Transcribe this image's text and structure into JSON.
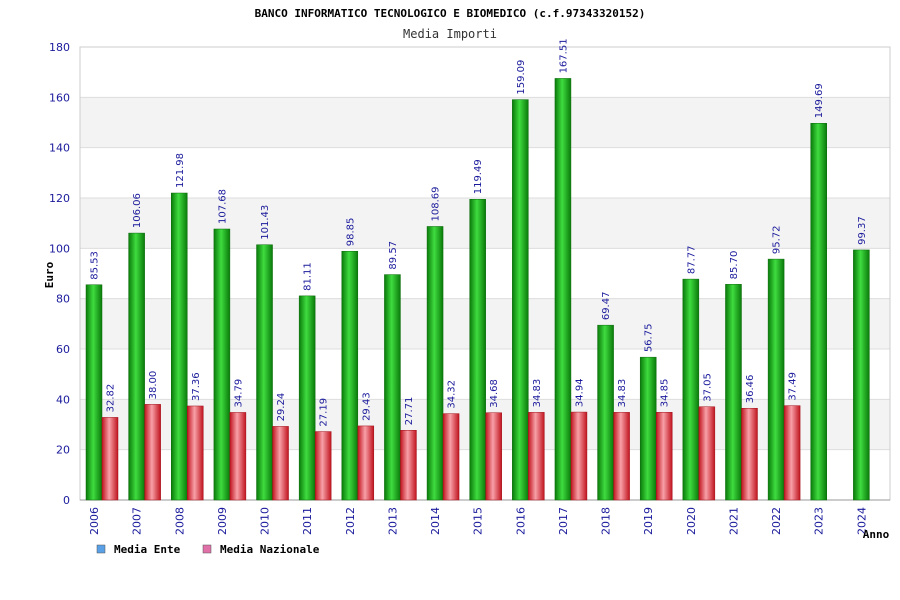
{
  "chart_data": {
    "type": "bar",
    "title": "BANCO INFORMATICO TECNOLOGICO E BIOMEDICO (c.f.97343320152)",
    "subtitle": "Media Importi",
    "xlabel": "Anno",
    "ylabel": "Euro",
    "ylim": [
      0,
      180
    ],
    "yticks": [
      0,
      20,
      40,
      60,
      80,
      100,
      120,
      140,
      160,
      180
    ],
    "grid": true,
    "legend_position": "bottom-left",
    "categories": [
      "2006",
      "2007",
      "2008",
      "2009",
      "2010",
      "2011",
      "2012",
      "2013",
      "2014",
      "2015",
      "2016",
      "2017",
      "2018",
      "2019",
      "2020",
      "2021",
      "2022",
      "2023",
      "2024"
    ],
    "series": [
      {
        "name": "Media Ente",
        "legend_color": "#5aa0e6",
        "bar_color": "#1fae1f",
        "values": [
          85.53,
          106.06,
          121.98,
          107.68,
          101.43,
          81.11,
          98.85,
          89.57,
          108.69,
          119.49,
          159.09,
          167.51,
          69.47,
          56.75,
          87.77,
          85.7,
          95.72,
          149.69,
          99.37
        ],
        "labels": [
          "85.53",
          "106.06",
          "121.98",
          "107.68",
          "101.43",
          "81.11",
          "98.85",
          "89.57",
          "108.69",
          "119.49",
          "159.09",
          "167.51",
          "69.47",
          "56.75",
          "87.77",
          "85.70",
          "95.72",
          "149.69",
          "99.37"
        ]
      },
      {
        "name": "Media Nazionale",
        "legend_color": "#e070a8",
        "bar_color": "#e8303a",
        "values": [
          32.82,
          38.0,
          37.36,
          34.79,
          29.24,
          27.19,
          29.43,
          27.71,
          34.32,
          34.68,
          34.83,
          34.94,
          34.83,
          34.85,
          37.05,
          36.46,
          37.49,
          null,
          null
        ],
        "labels": [
          "32.82",
          "38.00",
          "37.36",
          "34.79",
          "29.24",
          "27.19",
          "29.43",
          "27.71",
          "34.32",
          "34.68",
          "34.83",
          "34.94",
          "34.83",
          "34.85",
          "37.05",
          "36.46",
          "37.49",
          "",
          ""
        ]
      }
    ]
  }
}
